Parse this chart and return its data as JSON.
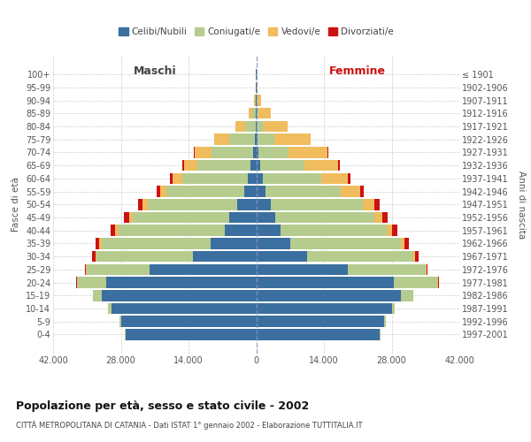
{
  "age_groups": [
    "0-4",
    "5-9",
    "10-14",
    "15-19",
    "20-24",
    "25-29",
    "30-34",
    "35-39",
    "40-44",
    "45-49",
    "50-54",
    "55-59",
    "60-64",
    "65-69",
    "70-74",
    "75-79",
    "80-84",
    "85-89",
    "90-94",
    "95-99",
    "100+"
  ],
  "birth_years": [
    "1997-2001",
    "1992-1996",
    "1987-1991",
    "1982-1986",
    "1977-1981",
    "1972-1976",
    "1967-1971",
    "1962-1966",
    "1957-1961",
    "1952-1956",
    "1947-1951",
    "1942-1946",
    "1937-1941",
    "1932-1936",
    "1927-1931",
    "1922-1926",
    "1917-1921",
    "1912-1916",
    "1907-1911",
    "1902-1906",
    "≤ 1901"
  ],
  "male": {
    "celibi": [
      27000,
      28000,
      30000,
      32000,
      31000,
      22000,
      13000,
      9500,
      6500,
      5500,
      4000,
      2500,
      1800,
      1200,
      700,
      300,
      120,
      60,
      20,
      8,
      3
    ],
    "coniugati": [
      200,
      300,
      600,
      1800,
      6000,
      13000,
      20000,
      22500,
      22000,
      20000,
      18500,
      16000,
      13500,
      11000,
      8500,
      5200,
      2200,
      700,
      180,
      40,
      8
    ],
    "vedovi": [
      5,
      5,
      10,
      20,
      80,
      150,
      300,
      400,
      600,
      800,
      1000,
      1400,
      2000,
      2800,
      3500,
      3200,
      2000,
      800,
      200,
      60,
      15
    ],
    "divorziati": [
      5,
      5,
      10,
      30,
      100,
      250,
      600,
      900,
      1000,
      1000,
      950,
      750,
      550,
      350,
      180,
      80,
      30,
      10,
      5,
      2,
      1
    ]
  },
  "female": {
    "nubili": [
      25500,
      26500,
      28000,
      30000,
      28500,
      19000,
      10500,
      7000,
      5000,
      4000,
      3000,
      2000,
      1400,
      900,
      500,
      200,
      80,
      40,
      15,
      5,
      2
    ],
    "coniugate": [
      200,
      300,
      600,
      2500,
      9000,
      16000,
      22000,
      23000,
      22000,
      20500,
      19000,
      15500,
      12000,
      9000,
      6200,
      3500,
      1400,
      450,
      100,
      25,
      5
    ],
    "vedove": [
      5,
      5,
      10,
      20,
      100,
      200,
      400,
      600,
      1000,
      1500,
      2500,
      4000,
      5500,
      7000,
      8000,
      7500,
      5000,
      2500,
      850,
      250,
      70
    ],
    "divorziate": [
      5,
      5,
      10,
      30,
      100,
      250,
      600,
      1000,
      1100,
      1100,
      1050,
      800,
      550,
      350,
      180,
      80,
      30,
      10,
      5,
      2,
      1
    ]
  },
  "colors": {
    "celibi": "#3B6FA0",
    "coniugati": "#B5CC8E",
    "vedovi": "#F0BC5E",
    "divorziati": "#CC1111"
  },
  "xlim": 42000,
  "xticks": [
    -42000,
    -28000,
    -14000,
    0,
    14000,
    28000,
    42000
  ],
  "xtick_labels": [
    "42.000",
    "28.000",
    "14.000",
    "0",
    "14.000",
    "28.000",
    "42.000"
  ],
  "title_main": "Popolazione per età, sesso e stato civile - 2002",
  "title_sub": "CITTÀ METROPOLITANA DI CATANIA - Dati ISTAT 1° gennaio 2002 - Elaborazione TUTTITALIA.IT",
  "ylabel_left": "Fasce di età",
  "ylabel_right": "Anni di nascita",
  "label_maschi": "Maschi",
  "label_femmine": "Femmine",
  "legend_labels": [
    "Celibi/Nubili",
    "Coniugati/e",
    "Vedovi/e",
    "Divorziati/e"
  ],
  "background_color": "#ffffff",
  "grid_color": "#cccccc"
}
